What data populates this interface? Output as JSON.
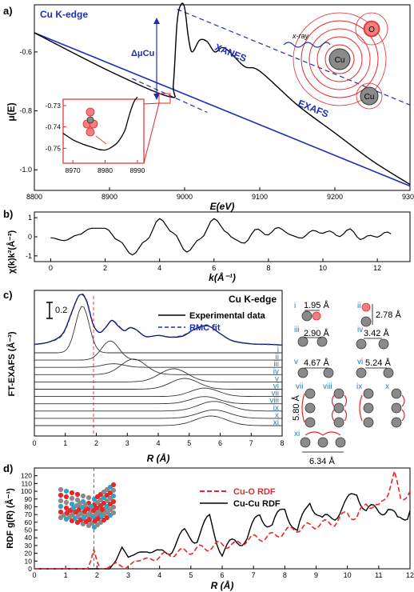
{
  "chart_data": [
    {
      "panel": "a)",
      "type": "line",
      "title": "Cu K-edge",
      "xlabel": "E(eV)",
      "ylabel": "μ(E)",
      "xlim": [
        8800,
        9300
      ],
      "ylim": [
        -1.07,
        -0.44
      ],
      "xticks": [
        8800,
        8900,
        9000,
        9100,
        9200,
        9300
      ],
      "yticks": [
        -1.0,
        -0.8,
        -0.6
      ],
      "annotations": [
        "XANES",
        "EXAFS",
        "ΔμCu",
        "x-ray"
      ],
      "atom_labels": [
        "Cu",
        "Cu",
        "O"
      ],
      "series": [
        {
          "color": "#000000",
          "x": [
            8800,
            8900,
            8980,
            8985,
            8990,
            8995,
            9000,
            9005,
            9010,
            9020,
            9030,
            9040,
            9050,
            9060,
            9080,
            9100,
            9150,
            9200,
            9250,
            9300
          ],
          "values": [
            -0.535,
            -0.665,
            -0.752,
            -0.71,
            -0.5,
            -0.44,
            -0.45,
            -0.55,
            -0.6,
            -0.56,
            -0.565,
            -0.6,
            -0.585,
            -0.6,
            -0.65,
            -0.665,
            -0.78,
            -0.875,
            -0.97,
            -1.05
          ]
        },
        {
          "color": "#1f2fb5",
          "x": [
            8800,
            9300
          ],
          "values": [
            -0.535,
            -1.055
          ]
        }
      ],
      "inset": {
        "xlim": [
          8967,
          8992
        ],
        "ylim": [
          -0.757,
          -0.727
        ],
        "xticks": [
          8970,
          8980,
          8990
        ],
        "yticks": [
          -0.75,
          -0.74,
          -0.73
        ],
        "x": [
          8967,
          8970,
          8973,
          8976,
          8978,
          8980,
          8982,
          8984,
          8986,
          8987,
          8988,
          8989,
          8990
        ],
        "values": [
          -0.743,
          -0.746,
          -0.748,
          -0.7495,
          -0.7505,
          -0.7508,
          -0.7495,
          -0.747,
          -0.742,
          -0.737,
          -0.732,
          -0.728,
          -0.726
        ]
      }
    },
    {
      "panel": "b)",
      "type": "line",
      "xlabel": "k(Å⁻¹)",
      "ylabel": "χ(k)k²(Å⁻²)",
      "xlim": [
        -0.6,
        13.2
      ],
      "ylim": [
        -1.3,
        1.3
      ],
      "xticks": [
        0,
        2,
        4,
        6,
        8,
        10,
        12
      ],
      "yticks": [
        -1,
        0,
        1
      ],
      "x": [
        0,
        0.5,
        1,
        1.5,
        2,
        2.5,
        3,
        3.5,
        4,
        4.5,
        5,
        5.5,
        6,
        6.5,
        7,
        7.5,
        8,
        8.5,
        9,
        9.5,
        10,
        10.5,
        11,
        11.5,
        12,
        12.5
      ],
      "values": [
        -0.05,
        -0.2,
        0.1,
        0.45,
        0.45,
        -0.2,
        -0.95,
        -0.2,
        0.95,
        0.2,
        -0.8,
        -0.1,
        0.95,
        0.2,
        -0.4,
        0.3,
        0.2,
        0.45,
        -0.1,
        0.2,
        0.3,
        0.1,
        0.3,
        -0.1,
        0.1,
        0.15
      ]
    },
    {
      "panel": "c)",
      "type": "line",
      "title": "Cu K-edge",
      "xlabel": "R (Å)",
      "ylabel": "FT-EXAFS (Å⁻³)",
      "xlim": [
        0,
        8
      ],
      "xticks": [
        0,
        1,
        2,
        3,
        4,
        5,
        6,
        7,
        8
      ],
      "scale_bar": "0.2",
      "legend": [
        "Experimental data",
        "RMC fit"
      ],
      "series": [
        {
          "name": "Experimental data",
          "color": "#000000",
          "x": [
            0,
            0.4,
            0.8,
            1.0,
            1.2,
            1.4,
            1.55,
            1.7,
            1.9,
            2.1,
            2.3,
            2.5,
            2.7,
            2.9,
            3.1,
            3.3,
            3.6,
            4.0,
            4.4,
            4.8,
            5.2,
            5.6,
            6.0,
            6.4,
            7.0,
            7.6,
            8.0
          ],
          "values": [
            0.02,
            0.05,
            0.14,
            0.28,
            0.55,
            0.8,
            0.85,
            0.72,
            0.35,
            0.22,
            0.3,
            0.42,
            0.33,
            0.25,
            0.3,
            0.26,
            0.15,
            0.17,
            0.14,
            0.16,
            0.28,
            0.33,
            0.2,
            0.08,
            0.03,
            0.02,
            0.01
          ]
        },
        {
          "name": "RMC fit",
          "color": "#1f2fb5",
          "x": [
            0,
            0.4,
            0.8,
            1.0,
            1.2,
            1.4,
            1.55,
            1.7,
            1.9,
            2.1,
            2.3,
            2.5,
            2.7,
            2.9,
            3.1,
            3.3,
            3.6,
            4.0,
            4.4,
            4.8,
            5.2,
            5.6,
            6.0,
            6.4,
            7.0,
            7.6,
            8.0
          ],
          "values": [
            0.02,
            0.05,
            0.13,
            0.27,
            0.54,
            0.8,
            0.86,
            0.73,
            0.36,
            0.22,
            0.3,
            0.42,
            0.34,
            0.25,
            0.3,
            0.26,
            0.15,
            0.17,
            0.14,
            0.17,
            0.28,
            0.33,
            0.2,
            0.08,
            0.03,
            0.02,
            0.01
          ]
        }
      ],
      "components": [
        {
          "label": "i",
          "center": 1.55,
          "height": 0.78,
          "width": 0.22
        },
        {
          "label": "ii",
          "center": 2.45,
          "height": 0.32,
          "width": 0.28
        },
        {
          "label": "iii",
          "center": 2.55,
          "height": 0.06,
          "width": 0.35
        },
        {
          "label": "iv",
          "center": 3.2,
          "height": 0.26,
          "width": 0.4
        },
        {
          "label": "v",
          "center": 4.5,
          "height": 0.22,
          "width": 0.45
        },
        {
          "label": "vi",
          "center": 4.85,
          "height": 0.18,
          "width": 0.45
        },
        {
          "label": "vii",
          "center": 5.5,
          "height": 0.14,
          "width": 0.45
        },
        {
          "label": "viii",
          "center": 5.5,
          "height": 0.12,
          "width": 0.45
        },
        {
          "label": "ix",
          "center": 5.8,
          "height": 0.16,
          "width": 0.5
        },
        {
          "label": "x",
          "center": 5.8,
          "height": 0.14,
          "width": 0.5
        },
        {
          "label": "xi",
          "center": 5.7,
          "height": 0.16,
          "width": 0.5
        }
      ],
      "shells": [
        {
          "label": "i",
          "distance": "1.95 Å"
        },
        {
          "label": "ii",
          "distance": "2.78 Å"
        },
        {
          "label": "iii",
          "distance": "2.90 Å"
        },
        {
          "label": "iv",
          "distance": "3.42 Å"
        },
        {
          "label": "v",
          "distance": "4.67 Å"
        },
        {
          "label": "vi",
          "distance": "5.24 Å"
        },
        {
          "label": "vii",
          "distance": "5.80 Å"
        },
        {
          "label": "viii",
          "distance": ""
        },
        {
          "label": "ix",
          "distance": ""
        },
        {
          "label": "x",
          "distance": ""
        },
        {
          "label": "xi",
          "distance": "6.34 Å"
        }
      ]
    },
    {
      "panel": "d)",
      "type": "line",
      "xlabel": "R (Å)",
      "ylabel": "RDF g(R) (Å⁻¹)",
      "xlim": [
        0,
        12
      ],
      "ylim": [
        0,
        130
      ],
      "xticks": [
        0,
        1,
        2,
        3,
        4,
        5,
        6,
        7,
        8,
        9,
        10,
        11,
        12
      ],
      "yticks": [
        0,
        10,
        20,
        30,
        40,
        50,
        60,
        70,
        80,
        90,
        100,
        110,
        120
      ],
      "legend": [
        "Cu-O RDF",
        "Cu-Cu RDF"
      ],
      "series": [
        {
          "name": "Cu-O RDF",
          "color": "#e8262a",
          "x": [
            0,
            1.7,
            1.8,
            1.9,
            2.0,
            2.1,
            2.3,
            2.6,
            2.9,
            3.2,
            3.6,
            4.0,
            4.4,
            4.8,
            5.2,
            5.6,
            6.0,
            6.4,
            6.8,
            7.2,
            7.6,
            8.0,
            8.4,
            8.8,
            9.2,
            9.6,
            10.0,
            10.3,
            10.6,
            11.0,
            11.3,
            11.5,
            11.7,
            12.0
          ],
          "values": [
            0,
            0,
            10,
            25,
            10,
            0,
            0,
            8,
            0,
            10,
            12,
            15,
            20,
            22,
            25,
            28,
            32,
            30,
            38,
            40,
            42,
            48,
            52,
            55,
            58,
            60,
            72,
            65,
            85,
            78,
            100,
            122,
            90,
            100
          ]
        },
        {
          "name": "Cu-Cu RDF",
          "color": "#000000",
          "x": [
            0,
            2.4,
            2.6,
            2.8,
            3.0,
            3.3,
            3.6,
            4.0,
            4.4,
            4.8,
            5.2,
            5.6,
            6.0,
            6.4,
            6.8,
            7.2,
            7.6,
            8.0,
            8.4,
            8.8,
            9.2,
            9.6,
            10.0,
            10.3,
            10.6,
            11.0,
            11.3,
            11.6,
            12.0
          ],
          "values": [
            0,
            0,
            10,
            28,
            15,
            20,
            25,
            18,
            28,
            45,
            40,
            65,
            20,
            35,
            40,
            70,
            55,
            80,
            45,
            90,
            60,
            70,
            85,
            100,
            75,
            75,
            80,
            60,
            75
          ]
        }
      ],
      "marker_x": 1.9
    }
  ]
}
